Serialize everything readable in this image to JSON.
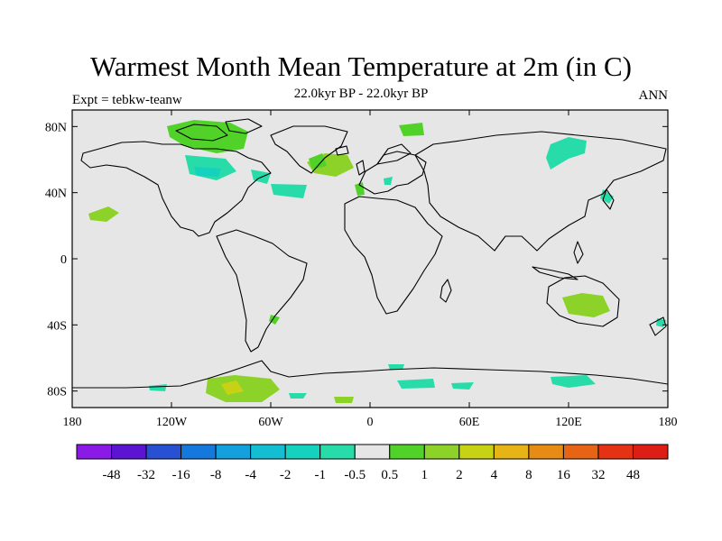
{
  "title": "Warmest Month Mean Temperature at 2m (in C)",
  "subtitle": "22.0kyr BP - 22.0kyr BP",
  "left_label": "Expt = tebkw-teanw",
  "right_label": "ANN",
  "map": {
    "lon_ticks": [
      "180",
      "120W",
      "60W",
      "0",
      "60E",
      "120E",
      "180"
    ],
    "lat_ticks": [
      "80N",
      "40N",
      "0",
      "40S",
      "80S"
    ],
    "background_color": "#e6e6e6"
  },
  "colorbar": {
    "labels": [
      "-48",
      "-32",
      "-16",
      "-8",
      "-4",
      "-2",
      "-1",
      "-0.5",
      "0.5",
      "1",
      "2",
      "4",
      "8",
      "16",
      "32",
      "48"
    ],
    "colors": [
      "#8c1ae6",
      "#5a14d2",
      "#2850d2",
      "#1478dc",
      "#14a0dc",
      "#14bed2",
      "#14d2be",
      "#28dcaa",
      "#e6e6e6",
      "#50d228",
      "#8cd228",
      "#c8d214",
      "#e6b414",
      "#e68c14",
      "#e66414",
      "#e63214",
      "#dc1e14"
    ]
  }
}
